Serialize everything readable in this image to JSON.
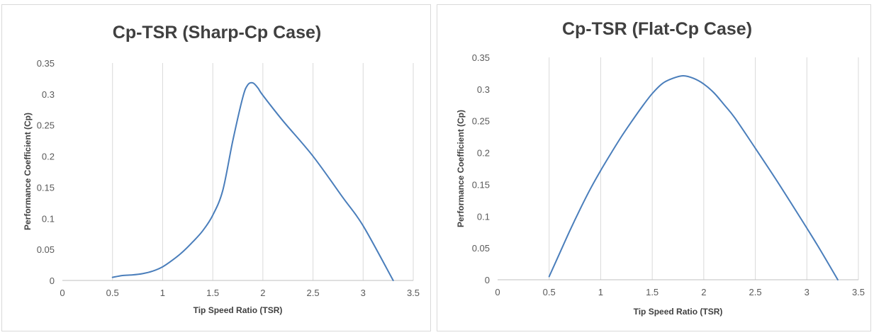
{
  "chart_data": [
    {
      "type": "line",
      "title": "Cp-TSR (Sharp-Cp Case)",
      "xlabel": "Tip Speed Ratio (TSR)",
      "ylabel": "Performance Coefficient (Cp)",
      "xlim": [
        0,
        3.5
      ],
      "ylim": [
        0,
        0.35
      ],
      "x_ticks": [
        "0",
        "0.5",
        "1",
        "1.5",
        "2",
        "2.5",
        "3",
        "3.5"
      ],
      "y_ticks": [
        "0",
        "0.05",
        "0.1",
        "0.15",
        "0.2",
        "0.25",
        "0.3",
        "0.35"
      ],
      "grid": "vertical",
      "legend": "none",
      "series_color": "#4a7ebb",
      "series": [
        {
          "x": [
            0.5,
            0.6,
            0.7,
            0.8,
            0.9,
            1.0,
            1.1,
            1.2,
            1.3,
            1.4,
            1.5,
            1.6,
            1.7,
            1.8,
            1.85,
            1.9,
            1.95,
            2.0,
            2.2,
            2.5,
            2.8,
            3.0,
            3.3
          ],
          "y": [
            0.005,
            0.008,
            0.009,
            0.011,
            0.015,
            0.022,
            0.033,
            0.046,
            0.062,
            0.08,
            0.105,
            0.145,
            0.225,
            0.295,
            0.315,
            0.318,
            0.31,
            0.298,
            0.257,
            0.2,
            0.133,
            0.088,
            0.0
          ]
        }
      ]
    },
    {
      "type": "line",
      "title": "Cp-TSR (Flat-Cp Case)",
      "xlabel": "Tip Speed Ratio (TSR)",
      "ylabel": "Performance Coefficient (Cp)",
      "xlim": [
        0,
        3.5
      ],
      "ylim": [
        0,
        0.35
      ],
      "x_ticks": [
        "0",
        "0.5",
        "1",
        "1.5",
        "2",
        "2.5",
        "3",
        "3.5"
      ],
      "y_ticks": [
        "0",
        "0.05",
        "0.1",
        "0.15",
        "0.2",
        "0.25",
        "0.3",
        "0.35"
      ],
      "grid": "vertical",
      "legend": "none",
      "series_color": "#4a7ebb",
      "series": [
        {
          "x": [
            0.5,
            0.6,
            0.7,
            0.8,
            0.9,
            1.0,
            1.1,
            1.2,
            1.3,
            1.4,
            1.5,
            1.6,
            1.7,
            1.8,
            1.9,
            2.0,
            2.1,
            2.2,
            2.3,
            2.5,
            2.7,
            2.9,
            3.1,
            3.3
          ],
          "y": [
            0.005,
            0.041,
            0.077,
            0.111,
            0.143,
            0.172,
            0.199,
            0.225,
            0.249,
            0.272,
            0.293,
            0.309,
            0.317,
            0.321,
            0.317,
            0.308,
            0.294,
            0.275,
            0.255,
            0.207,
            0.158,
            0.107,
            0.055,
            0.0
          ]
        }
      ]
    }
  ]
}
